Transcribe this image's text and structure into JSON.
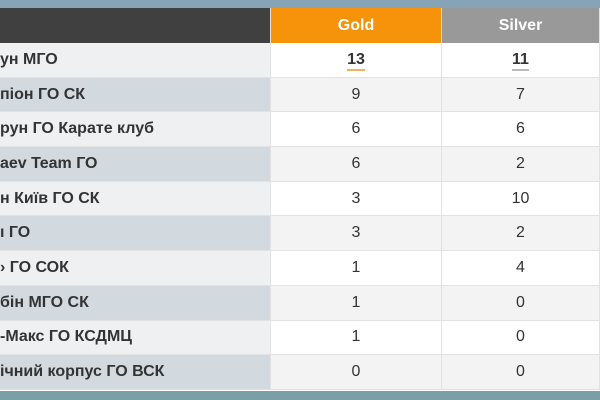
{
  "header": {
    "name": "",
    "gold": "Gold",
    "silver": "Silver"
  },
  "colors": {
    "gold": "#f7930a",
    "silver": "#999999",
    "header_dark": "#404040"
  },
  "rows": [
    {
      "name": "ун МГО",
      "gold": "13",
      "silver": "11"
    },
    {
      "name": "піон ГО СК",
      "gold": "9",
      "silver": "7"
    },
    {
      "name": "рун ГО Карате клуб",
      "gold": "6",
      "silver": "6"
    },
    {
      "name": "aev Team ГО",
      "gold": "6",
      "silver": "2"
    },
    {
      "name": "н Київ ГО СК",
      "gold": "3",
      "silver": "10"
    },
    {
      "name": "ı ГО",
      "gold": "3",
      "silver": "2"
    },
    {
      "name": "› ГО СОК",
      "gold": "1",
      "silver": "4"
    },
    {
      "name": "бін МГО СК",
      "gold": "1",
      "silver": "0"
    },
    {
      "name": "-Макс ГО КСДМЦ",
      "gold": "1",
      "silver": "0"
    },
    {
      "name": "ічний корпус ГО ВСК",
      "gold": "0",
      "silver": "0"
    }
  ]
}
